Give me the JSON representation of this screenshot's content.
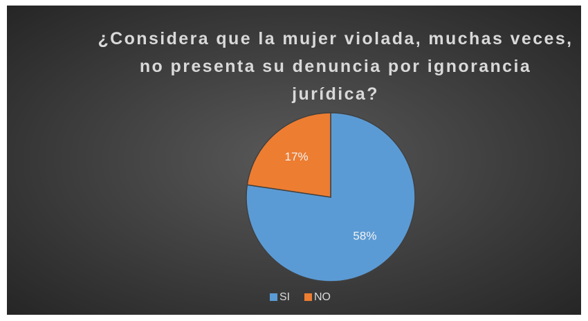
{
  "chart_data": {
    "type": "pie",
    "title": "¿Considera que la mujer violada, muchas veces, no presenta su denuncia por ignorancia jurídica?",
    "categories": [
      "SI",
      "NO"
    ],
    "values": [
      58,
      17
    ],
    "value_labels": [
      "58%",
      "17%"
    ],
    "colors": [
      "#5b9bd5",
      "#ed7d31"
    ],
    "legend": "bottom"
  }
}
